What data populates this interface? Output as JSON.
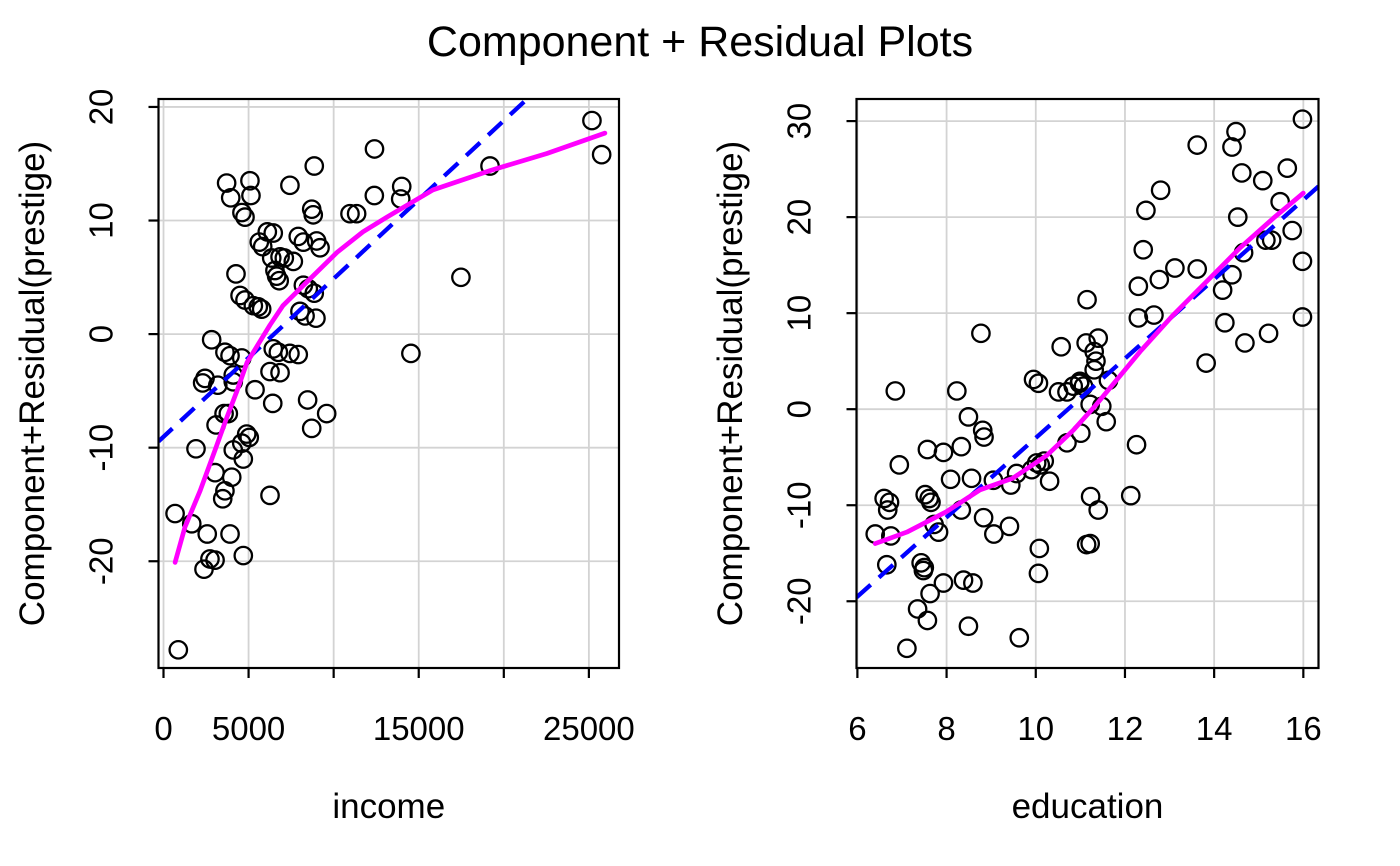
{
  "title": "Component + Residual Plots",
  "colors": {
    "smooth_line": "#ff00ff",
    "linear_fit_line": "#0000ff",
    "points": "#000000",
    "gridlines": "#d3d3d3",
    "axis": "#000000",
    "background": "#ffffff"
  },
  "chart_data": [
    {
      "type": "scatter",
      "panel": "income",
      "xlabel": "income",
      "ylabel": "Component+Residual(prestige)",
      "xlim": [
        -294,
        26770
      ],
      "ylim": [
        -29.4,
        20.7
      ],
      "grid": true,
      "legend": null,
      "xticks": {
        "values": [
          0,
          5000,
          10000,
          15000,
          20000,
          25000
        ],
        "labels": [
          "0",
          "5000",
          "",
          "15000",
          "",
          "25000"
        ]
      },
      "yticks": {
        "values": [
          -20,
          -10,
          0,
          10,
          20
        ],
        "labels": [
          "-20",
          "-10",
          "0",
          "10",
          "20"
        ]
      },
      "points": [
        [
          12400,
          16.3
        ],
        [
          8860,
          14.8
        ],
        [
          3710,
          13.3
        ],
        [
          5080,
          13.5
        ],
        [
          7430,
          13.1
        ],
        [
          3950,
          12.0
        ],
        [
          5140,
          12.2
        ],
        [
          12390,
          12.2
        ],
        [
          4610,
          10.7
        ],
        [
          4790,
          10.3
        ],
        [
          8710,
          11.0
        ],
        [
          8800,
          10.5
        ],
        [
          10960,
          10.6
        ],
        [
          11350,
          10.6
        ],
        [
          6100,
          9.0
        ],
        [
          6450,
          8.9
        ],
        [
          5630,
          8.1
        ],
        [
          5830,
          7.7
        ],
        [
          7920,
          8.6
        ],
        [
          8220,
          8.1
        ],
        [
          9000,
          8.2
        ],
        [
          9200,
          7.6
        ],
        [
          6360,
          6.7
        ],
        [
          6850,
          6.8
        ],
        [
          7100,
          6.7
        ],
        [
          6550,
          5.6
        ],
        [
          6650,
          5.1
        ],
        [
          6800,
          4.7
        ],
        [
          7630,
          6.4
        ],
        [
          4260,
          5.3
        ],
        [
          8220,
          4.3
        ],
        [
          8510,
          4.0
        ],
        [
          8860,
          3.6
        ],
        [
          4500,
          3.4
        ],
        [
          4790,
          3.0
        ],
        [
          5280,
          2.5
        ],
        [
          5570,
          2.4
        ],
        [
          5770,
          2.2
        ],
        [
          8020,
          2.0
        ],
        [
          8320,
          1.6
        ],
        [
          8960,
          1.4
        ],
        [
          2830,
          -0.5
        ],
        [
          3610,
          -1.6
        ],
        [
          3910,
          -1.9
        ],
        [
          4600,
          -2.1
        ],
        [
          6450,
          -1.3
        ],
        [
          6750,
          -1.6
        ],
        [
          7430,
          -1.7
        ],
        [
          7920,
          -1.8
        ],
        [
          6260,
          -3.3
        ],
        [
          6850,
          -3.4
        ],
        [
          4100,
          -3.6
        ],
        [
          2440,
          -3.9
        ],
        [
          25180,
          18.8
        ],
        [
          25750,
          15.8
        ],
        [
          19190,
          14.8
        ],
        [
          14000,
          13.0
        ],
        [
          13940,
          11.9
        ],
        [
          17480,
          5.0
        ],
        [
          14540,
          -1.7
        ],
        [
          2300,
          -4.3
        ],
        [
          3190,
          -4.5
        ],
        [
          4100,
          -4.2
        ],
        [
          5380,
          -4.9
        ],
        [
          6420,
          -6.1
        ],
        [
          8470,
          -5.8
        ],
        [
          9590,
          -7.0
        ],
        [
          8710,
          -8.3
        ],
        [
          3560,
          -7.0
        ],
        [
          3810,
          -7.0
        ],
        [
          3090,
          -8.0
        ],
        [
          4890,
          -8.8
        ],
        [
          5040,
          -9.1
        ],
        [
          4600,
          -9.6
        ],
        [
          4100,
          -10.2
        ],
        [
          4690,
          -11.0
        ],
        [
          1910,
          -10.1
        ],
        [
          3030,
          -12.2
        ],
        [
          4010,
          -12.6
        ],
        [
          3610,
          -13.8
        ],
        [
          3480,
          -14.5
        ],
        [
          6260,
          -14.2
        ],
        [
          680,
          -15.8
        ],
        [
          1660,
          -16.7
        ],
        [
          2570,
          -17.6
        ],
        [
          3910,
          -17.6
        ],
        [
          4690,
          -19.5
        ],
        [
          2730,
          -19.8
        ],
        [
          3030,
          -19.9
        ],
        [
          2380,
          -20.7
        ],
        [
          870,
          -27.8
        ]
      ],
      "linear_fit": {
        "style": "dashed",
        "endpoints": [
          [
            -294,
            -9.45
          ],
          [
            26770,
            28.22
          ]
        ]
      },
      "smooth": [
        [
          680,
          -20.1
        ],
        [
          1260,
          -17.0
        ],
        [
          2150,
          -13.8
        ],
        [
          3030,
          -10.2
        ],
        [
          3730,
          -7.3
        ],
        [
          4320,
          -5.0
        ],
        [
          4910,
          -2.5
        ],
        [
          6260,
          0.8
        ],
        [
          7020,
          2.5
        ],
        [
          8430,
          4.6
        ],
        [
          10200,
          7.2
        ],
        [
          11720,
          9.0
        ],
        [
          13130,
          10.3
        ],
        [
          15840,
          12.7
        ],
        [
          19190,
          14.4
        ],
        [
          22530,
          15.9
        ],
        [
          25940,
          17.7
        ]
      ]
    },
    {
      "type": "scatter",
      "panel": "education",
      "xlabel": "education",
      "ylabel": "Component+Residual(prestige)",
      "xlim": [
        5.98,
        16.34
      ],
      "ylim": [
        -26.95,
        32.3
      ],
      "grid": true,
      "legend": null,
      "xticks": {
        "values": [
          6,
          8,
          10,
          12,
          14,
          16
        ],
        "labels": [
          "6",
          "8",
          "10",
          "12",
          "14",
          "16"
        ]
      },
      "yticks": {
        "values": [
          -20,
          -10,
          0,
          10,
          20,
          30
        ],
        "labels": [
          "-20",
          "-10",
          "0",
          "10",
          "20",
          "30"
        ]
      },
      "points": [
        [
          15.98,
          30.2
        ],
        [
          14.49,
          28.9
        ],
        [
          13.62,
          27.5
        ],
        [
          14.4,
          27.3
        ],
        [
          14.62,
          24.6
        ],
        [
          15.09,
          23.8
        ],
        [
          15.64,
          25.1
        ],
        [
          12.8,
          22.8
        ],
        [
          12.47,
          20.7
        ],
        [
          15.48,
          21.6
        ],
        [
          14.53,
          20.0
        ],
        [
          15.75,
          18.6
        ],
        [
          14.66,
          16.3
        ],
        [
          15.16,
          17.6
        ],
        [
          15.29,
          17.6
        ],
        [
          12.41,
          16.6
        ],
        [
          13.12,
          14.7
        ],
        [
          13.62,
          14.6
        ],
        [
          12.77,
          13.5
        ],
        [
          12.3,
          12.8
        ],
        [
          15.98,
          15.4
        ],
        [
          14.4,
          14.0
        ],
        [
          14.19,
          12.4
        ],
        [
          11.15,
          11.4
        ],
        [
          12.3,
          9.5
        ],
        [
          12.65,
          9.8
        ],
        [
          14.24,
          9.0
        ],
        [
          15.98,
          9.6
        ],
        [
          14.69,
          6.9
        ],
        [
          15.22,
          7.9
        ],
        [
          13.82,
          4.8
        ],
        [
          11.4,
          7.4
        ],
        [
          11.13,
          6.9
        ],
        [
          11.31,
          6.0
        ],
        [
          11.35,
          5.0
        ],
        [
          11.31,
          4.1
        ],
        [
          11.63,
          3.0
        ],
        [
          11.22,
          0.5
        ],
        [
          11.48,
          0.3
        ],
        [
          11.58,
          -1.3
        ],
        [
          12.26,
          -3.7
        ],
        [
          12.13,
          -9.0
        ],
        [
          11.23,
          -9.1
        ],
        [
          11.4,
          -10.5
        ],
        [
          11.22,
          -14.0
        ],
        [
          8.77,
          7.9
        ],
        [
          10.57,
          6.5
        ],
        [
          9.95,
          3.1
        ],
        [
          10.06,
          2.7
        ],
        [
          10.98,
          2.7
        ],
        [
          11.07,
          2.4
        ],
        [
          10.7,
          1.8
        ],
        [
          10.51,
          1.8
        ],
        [
          10.84,
          2.4
        ],
        [
          10.99,
          2.9
        ],
        [
          6.85,
          1.9
        ],
        [
          8.23,
          1.9
        ],
        [
          8.49,
          -0.8
        ],
        [
          8.81,
          -2.2
        ],
        [
          8.84,
          -2.9
        ],
        [
          7.57,
          -4.2
        ],
        [
          7.93,
          -4.5
        ],
        [
          8.33,
          -3.9
        ],
        [
          6.94,
          -5.8
        ],
        [
          8.09,
          -7.3
        ],
        [
          8.56,
          -7.2
        ],
        [
          9.05,
          -7.4
        ],
        [
          9.44,
          -7.9
        ],
        [
          9.57,
          -6.7
        ],
        [
          9.91,
          -6.3
        ],
        [
          10.02,
          -5.6
        ],
        [
          10.1,
          -5.8
        ],
        [
          10.19,
          -5.4
        ],
        [
          10.31,
          -7.5
        ],
        [
          10.7,
          -3.5
        ],
        [
          11.01,
          -2.5
        ],
        [
          6.6,
          -9.3
        ],
        [
          6.72,
          -9.7
        ],
        [
          6.68,
          -10.5
        ],
        [
          7.52,
          -8.9
        ],
        [
          7.61,
          -9.3
        ],
        [
          7.65,
          -9.7
        ],
        [
          8.33,
          -10.5
        ],
        [
          7.72,
          -12.0
        ],
        [
          7.82,
          -12.8
        ],
        [
          8.83,
          -11.3
        ],
        [
          9.06,
          -13.0
        ],
        [
          9.41,
          -12.2
        ],
        [
          6.4,
          -13.0
        ],
        [
          6.75,
          -13.2
        ],
        [
          6.66,
          -16.2
        ],
        [
          7.43,
          -16.0
        ],
        [
          7.5,
          -16.5
        ],
        [
          7.48,
          -16.8
        ],
        [
          7.93,
          -18.1
        ],
        [
          7.63,
          -19.2
        ],
        [
          8.38,
          -17.8
        ],
        [
          8.59,
          -18.1
        ],
        [
          10.06,
          -17.1
        ],
        [
          10.08,
          -14.5
        ],
        [
          11.14,
          -14.1
        ],
        [
          7.35,
          -20.8
        ],
        [
          7.57,
          -22.0
        ],
        [
          8.49,
          -22.6
        ],
        [
          9.63,
          -23.8
        ],
        [
          7.11,
          -24.9
        ]
      ],
      "linear_fit": {
        "style": "dashed",
        "endpoints": [
          [
            5.98,
            -19.6
          ],
          [
            16.34,
            23.2
          ]
        ]
      },
      "smooth": [
        [
          6.4,
          -14.0
        ],
        [
          7.11,
          -12.8
        ],
        [
          7.99,
          -10.7
        ],
        [
          8.75,
          -8.4
        ],
        [
          9.48,
          -7.2
        ],
        [
          10.25,
          -4.8
        ],
        [
          10.84,
          -2.2
        ],
        [
          11.35,
          0.45
        ],
        [
          12.34,
          6.0
        ],
        [
          13.08,
          9.8
        ],
        [
          13.83,
          13.3
        ],
        [
          14.58,
          16.8
        ],
        [
          15.33,
          19.9
        ],
        [
          16.0,
          22.5
        ]
      ]
    }
  ]
}
